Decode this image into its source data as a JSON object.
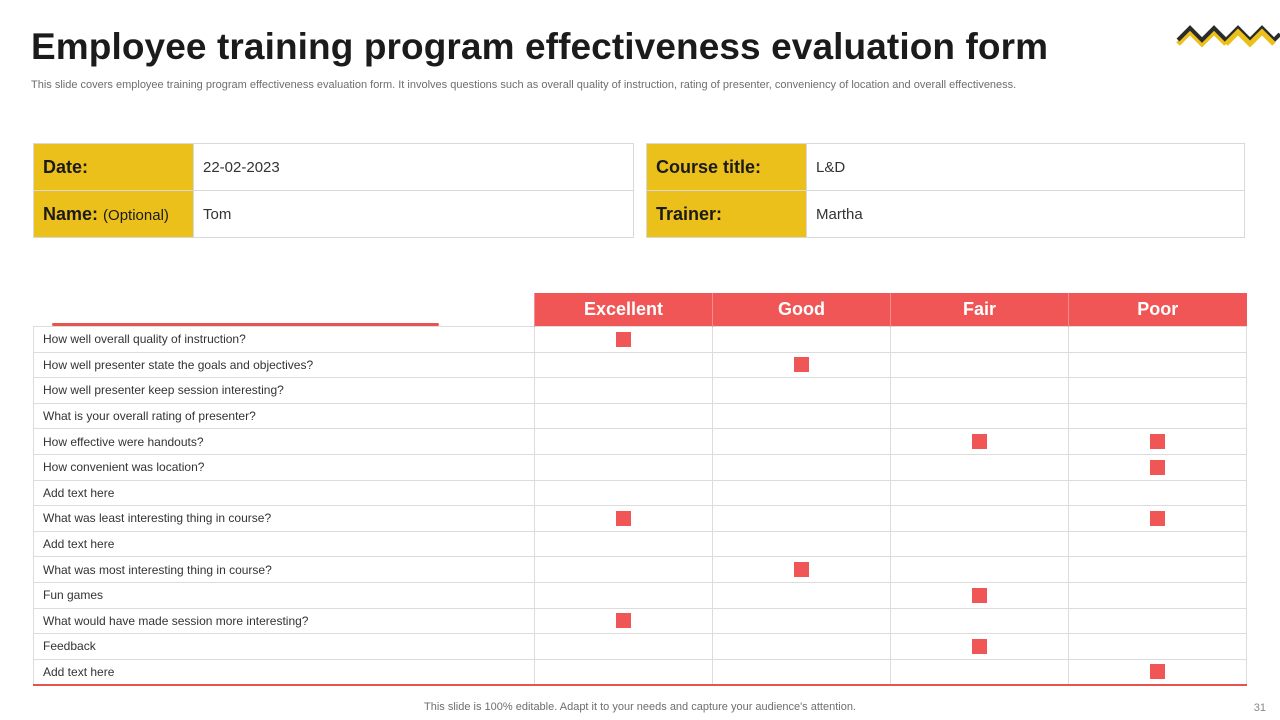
{
  "header": {
    "title": "Employee training program effectiveness evaluation form",
    "subtitle": "This slide covers employee training program effectiveness evaluation form. It involves questions such as  overall quality of instruction, rating of presenter, conveniency of location and overall effectiveness."
  },
  "colors": {
    "accent_yellow": "#ecc01b",
    "accent_red": "#f05656",
    "logo_dark": "#2b2b2b"
  },
  "info_left": {
    "date_label": "Date:",
    "date_value": "22-02-2023",
    "name_label": "Name:",
    "name_optional": "(Optional)",
    "name_value": "Tom"
  },
  "info_right": {
    "course_label": "Course title:",
    "course_value": "L&D",
    "trainer_label": "Trainer:",
    "trainer_value": "Martha"
  },
  "evaluation": {
    "columns": [
      "Excellent",
      "Good",
      "Fair",
      "Poor"
    ],
    "rows": [
      {
        "question": "How well overall  quality of instruction?",
        "marks": [
          true,
          false,
          false,
          false
        ]
      },
      {
        "question": "How well presenter  state the goals and objectives?",
        "marks": [
          false,
          true,
          false,
          false
        ]
      },
      {
        "question": "How well presenter  keep session interesting?",
        "marks": [
          false,
          false,
          false,
          false
        ]
      },
      {
        "question": "What is your overall  rating of presenter?",
        "marks": [
          false,
          false,
          false,
          false
        ]
      },
      {
        "question": "How effective  were handouts?",
        "marks": [
          false,
          false,
          true,
          true
        ]
      },
      {
        "question": "How convenient  was location?",
        "marks": [
          false,
          false,
          false,
          true
        ]
      },
      {
        "question": "Add text here",
        "marks": [
          false,
          false,
          false,
          false
        ]
      },
      {
        "question": "What was least interesting thing in course?",
        "marks": [
          true,
          false,
          false,
          true
        ]
      },
      {
        "question": "Add text here",
        "marks": [
          false,
          false,
          false,
          false
        ]
      },
      {
        "question": "What was most interesting thing in course?",
        "marks": [
          false,
          true,
          false,
          false
        ]
      },
      {
        "question": "Fun games",
        "marks": [
          false,
          false,
          true,
          false
        ]
      },
      {
        "question": "What would have  made session more interesting?",
        "marks": [
          true,
          false,
          false,
          false
        ]
      },
      {
        "question": "Feedback",
        "marks": [
          false,
          false,
          true,
          false
        ]
      },
      {
        "question": "Add text here",
        "marks": [
          false,
          false,
          false,
          true
        ]
      }
    ]
  },
  "footer": {
    "note": "This slide is 100% editable. Adapt it to your needs and capture your audience's attention.",
    "page_number": "31"
  }
}
